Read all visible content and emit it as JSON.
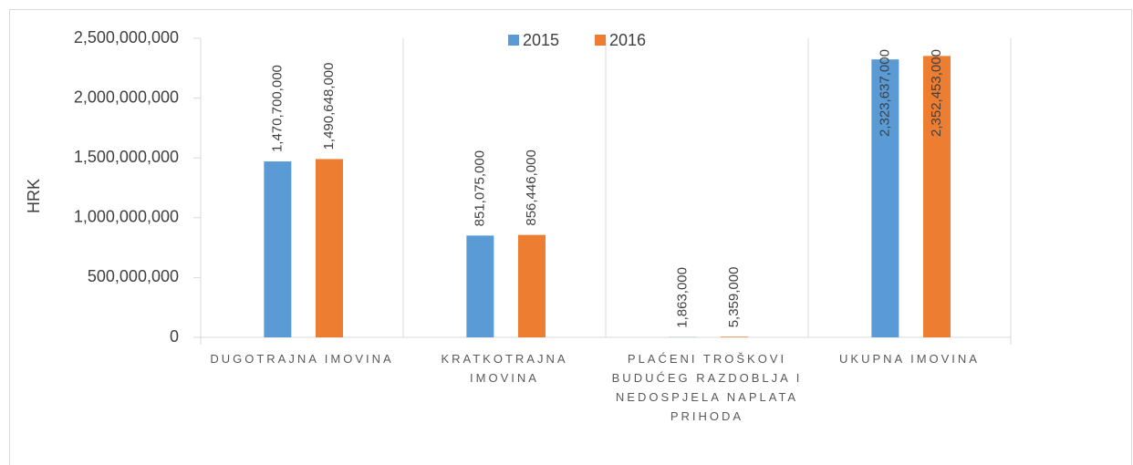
{
  "chart_data": {
    "type": "bar",
    "y_label": "HRK",
    "categories": [
      "DUGOTRAJNA IMOVINA",
      "KRATKOTRAJNA IMOVINA",
      "PLAĆENI TROŠKOVI BUDUĆEG RAZDOBLJA I NEDOSPJELA NAPLATA PRIHODA",
      "UKUPNA IMOVINA"
    ],
    "series": [
      {
        "name": "2015",
        "color": "#5b9bd5",
        "values": [
          1470700000,
          851075000,
          1863000,
          2323637000
        ],
        "value_labels": [
          "1,470,700,000",
          "851,075,000",
          "1,863,000",
          "2,323,637,000"
        ]
      },
      {
        "name": "2016",
        "color": "#ed7d31",
        "values": [
          1490648000,
          856446000,
          5359000,
          2352453000
        ],
        "value_labels": [
          "1,490,648,000",
          "856,446,000",
          "5,359,000",
          "2,352,453,000"
        ]
      }
    ],
    "ylim": [
      0,
      2500000000
    ],
    "yticks": [
      0,
      {
        "value": 500000000,
        "label": "500,000,000"
      },
      {
        "value": 1000000000,
        "label": "1,000,000,000"
      },
      {
        "value": 1500000000,
        "label": "1,500,000,000"
      },
      {
        "value": 2000000000,
        "label": "2,000,000,000"
      },
      {
        "value": 2500000000,
        "label": "2,500,000,000"
      }
    ],
    "legend": "top"
  }
}
